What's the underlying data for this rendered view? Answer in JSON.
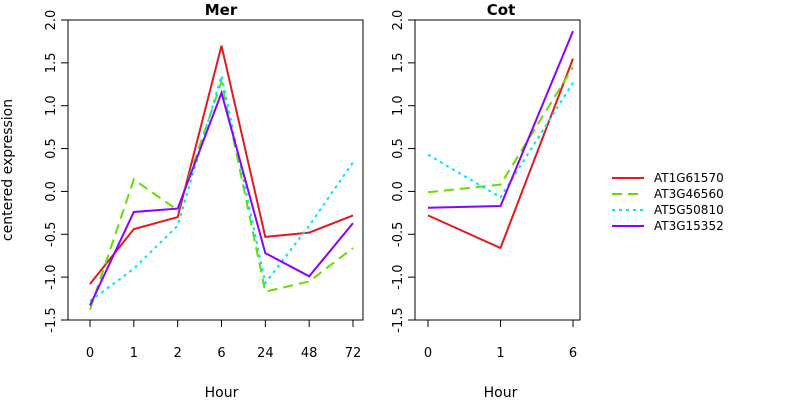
{
  "chart_data": [
    {
      "type": "line",
      "title": "Mer",
      "xlabel": "Hour",
      "ylabel": "centered expression",
      "categories": [
        "0",
        "1",
        "2",
        "6",
        "24",
        "48",
        "72"
      ],
      "ylim": [
        -1.5,
        2.0
      ],
      "yticks": [
        "-1.5",
        "-1.0",
        "-0.5",
        "0.0",
        "0.5",
        "1.0",
        "1.5",
        "2.0"
      ],
      "series": [
        {
          "name": "AT1G61570",
          "color": "#e31a1c",
          "dash": "solid",
          "values": [
            -1.08,
            -0.44,
            -0.3,
            1.7,
            -0.53,
            -0.48,
            -0.28
          ]
        },
        {
          "name": "AT3G46560",
          "color": "#66dd00",
          "dash": "dashed",
          "values": [
            -1.38,
            0.14,
            -0.22,
            1.28,
            -1.17,
            -1.05,
            -0.66
          ]
        },
        {
          "name": "AT5G50810",
          "color": "#00e5ee",
          "dash": "dotted",
          "values": [
            -1.28,
            -0.9,
            -0.4,
            1.35,
            -1.07,
            -0.4,
            0.34
          ]
        },
        {
          "name": "AT3G15352",
          "color": "#8b00ff",
          "dash": "solid",
          "values": [
            -1.33,
            -0.24,
            -0.2,
            1.15,
            -0.72,
            -0.99,
            -0.37
          ]
        }
      ]
    },
    {
      "type": "line",
      "title": "Cot",
      "xlabel": "Hour",
      "ylabel": "",
      "categories": [
        "0",
        "1",
        "6"
      ],
      "ylim": [
        -1.5,
        2.0
      ],
      "yticks": [
        "-1.5",
        "-1.0",
        "-0.5",
        "0.0",
        "0.5",
        "1.0",
        "1.5",
        "2.0"
      ],
      "series": [
        {
          "name": "AT1G61570",
          "color": "#e31a1c",
          "dash": "solid",
          "values": [
            -0.28,
            -0.66,
            1.55
          ]
        },
        {
          "name": "AT3G46560",
          "color": "#66dd00",
          "dash": "dashed",
          "values": [
            -0.01,
            0.08,
            1.45
          ]
        },
        {
          "name": "AT5G50810",
          "color": "#00e5ee",
          "dash": "dotted",
          "values": [
            0.43,
            -0.07,
            1.27
          ]
        },
        {
          "name": "AT3G15352",
          "color": "#8b00ff",
          "dash": "solid",
          "values": [
            -0.19,
            -0.17,
            1.87
          ]
        }
      ]
    }
  ],
  "legend": {
    "position": "right",
    "entries": [
      {
        "label": "AT1G61570",
        "color": "#e31a1c",
        "dash": "solid"
      },
      {
        "label": "AT3G46560",
        "color": "#66dd00",
        "dash": "dashed"
      },
      {
        "label": "AT5G50810",
        "color": "#00e5ee",
        "dash": "dotted"
      },
      {
        "label": "AT3G15352",
        "color": "#8b00ff",
        "dash": "solid"
      }
    ]
  }
}
